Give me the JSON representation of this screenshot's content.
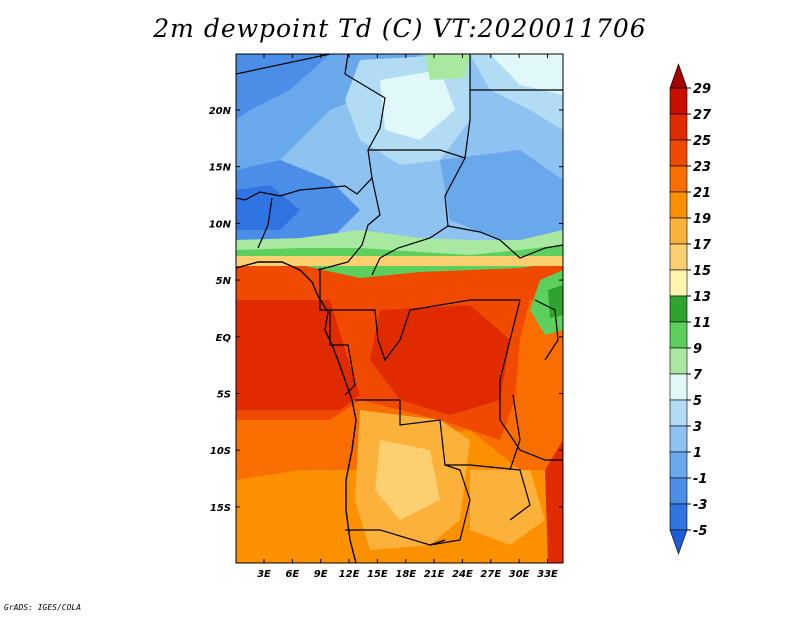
{
  "title": "2m dewpoint Td (C) VT:2020011706",
  "credit": "GrADS: IGES/COLA",
  "map": {
    "lat_ticks": [
      "20N",
      "15N",
      "10N",
      "5N",
      "EQ",
      "5S",
      "10S",
      "15S"
    ],
    "lon_ticks": [
      "3E",
      "6E",
      "9E",
      "12E",
      "15E",
      "18E",
      "21E",
      "24E",
      "27E",
      "30E",
      "33E"
    ]
  },
  "colorbar": {
    "levels": [
      "29",
      "27",
      "25",
      "23",
      "21",
      "19",
      "17",
      "15",
      "13",
      "11",
      "9",
      "7",
      "5",
      "3",
      "1",
      "-1",
      "-3",
      "-5"
    ],
    "colors": [
      "#a50000",
      "#c81000",
      "#e02a00",
      "#f04a00",
      "#f86e00",
      "#fb9000",
      "#fcb13a",
      "#fcd070",
      "#fff4b0",
      "#2ea32e",
      "#5ccf5c",
      "#a8e8a0",
      "#e0f8f8",
      "#b2dcf4",
      "#8ec2f0",
      "#6aa8ec",
      "#4a8ee8",
      "#2f74e0",
      "#1e5cd8"
    ]
  }
}
